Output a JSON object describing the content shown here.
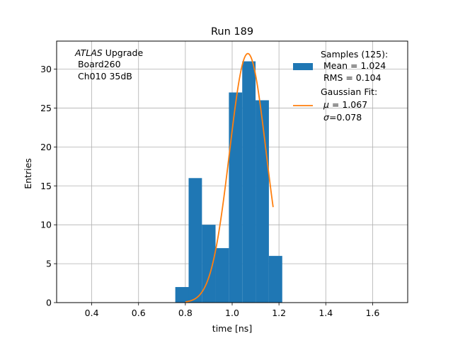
{
  "chart_data": {
    "type": "bar",
    "title": "Run 189",
    "xlabel": "time [ns]",
    "ylabel": "Entries",
    "xlim": [
      0.25,
      1.75
    ],
    "ylim": [
      0,
      33.6
    ],
    "xticks": [
      {
        "v": 0.4,
        "label": "0.4"
      },
      {
        "v": 0.6,
        "label": "0.6"
      },
      {
        "v": 0.8,
        "label": "0.8"
      },
      {
        "v": 1.0,
        "label": "1.0"
      },
      {
        "v": 1.2,
        "label": "1.2"
      },
      {
        "v": 1.4,
        "label": "1.4"
      },
      {
        "v": 1.6,
        "label": "1.6"
      }
    ],
    "yticks": [
      {
        "v": 0,
        "label": "0"
      },
      {
        "v": 5,
        "label": "5"
      },
      {
        "v": 10,
        "label": "10"
      },
      {
        "v": 15,
        "label": "15"
      },
      {
        "v": 20,
        "label": "20"
      },
      {
        "v": 25,
        "label": "25"
      },
      {
        "v": 30,
        "label": "30"
      }
    ],
    "grid": true,
    "histogram": {
      "color": "#1f77b4",
      "bins": [
        {
          "x0": 0.757,
          "x1": 0.814,
          "count": 2
        },
        {
          "x0": 0.814,
          "x1": 0.871,
          "count": 16
        },
        {
          "x0": 0.871,
          "x1": 0.929,
          "count": 10
        },
        {
          "x0": 0.929,
          "x1": 0.986,
          "count": 7
        },
        {
          "x0": 0.986,
          "x1": 1.043,
          "count": 27
        },
        {
          "x0": 1.043,
          "x1": 1.1,
          "count": 31
        },
        {
          "x0": 1.1,
          "x1": 1.157,
          "count": 26
        },
        {
          "x0": 1.157,
          "x1": 1.214,
          "count": 6
        }
      ]
    },
    "fit": {
      "color": "#ff7f0e",
      "mu": 1.067,
      "sigma": 0.078,
      "amplitude": 32.0,
      "xrange": [
        0.8,
        1.175
      ]
    },
    "annotation": {
      "italic_part": "ATLAS",
      "rest": " Upgrade",
      "line2": " Board260",
      "line3": " Ch010 35dB"
    },
    "legend": {
      "position": "upper right",
      "samples_line1": "Samples (125):",
      "samples_line2": " Mean = 1.024",
      "samples_line3": " RMS = 0.104",
      "fit_line1": "Gaussian Fit:",
      "fit_mu_symbol": "μ",
      "fit_mu_value": " = 1.067",
      "fit_sigma_symbol": "σ",
      "fit_sigma_value": "=0.078"
    }
  }
}
